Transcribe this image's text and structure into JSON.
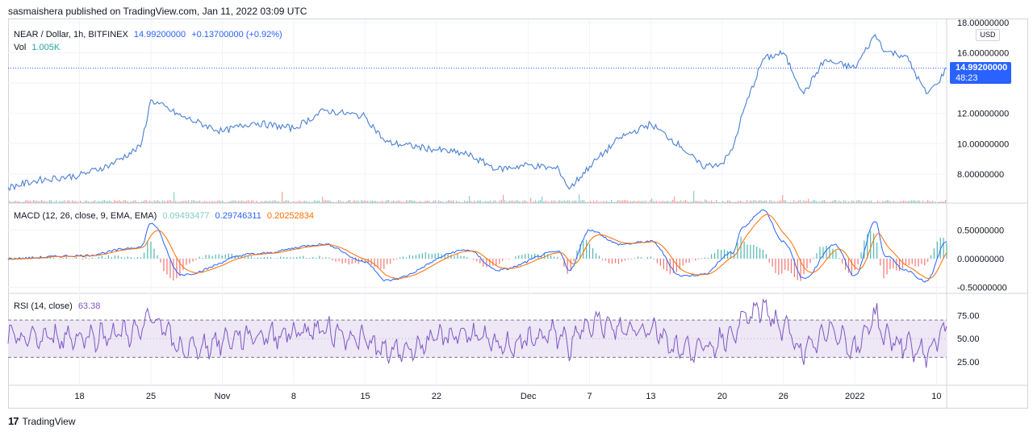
{
  "header": {
    "publisher": "sasmaishera published on TradingView.com, Jan 11, 2022 03:09 UTC"
  },
  "price_pane": {
    "symbol": "NEAR / Dollar, 1h, BITFINEX",
    "last": "14.99200000",
    "change": "+0.13700000 (+0.92%)",
    "vol_label": "Vol",
    "vol_value": "1.005K",
    "currency": "USD",
    "price_tag": "14.99200000",
    "countdown": "48:23",
    "line_color": "#4a7fd4"
  },
  "macd_pane": {
    "label": "MACD (12, 26, close, 9, EMA, EMA)",
    "hist": "0.09493477",
    "macd": "0.29746311",
    "signal": "0.20252834",
    "macd_color": "#2962ff",
    "signal_color": "#ff6d00",
    "hist_pos_color": "#26a69a",
    "hist_neg_color": "#ef5350"
  },
  "rsi_pane": {
    "label": "RSI (14, close)",
    "value": "63.38",
    "line_color": "#7e57c2",
    "band_color": "#ede7f6"
  },
  "footer": {
    "brand": "TradingView",
    "logo": "17"
  },
  "chart_data": [
    {
      "type": "line",
      "name": "NEAR / Dollar",
      "x": [
        "Oct 11",
        "Oct 14",
        "Oct 18",
        "Oct 21",
        "Oct 24",
        "Oct 25",
        "Oct 28",
        "Nov 1",
        "Nov 4",
        "Nov 8",
        "Nov 11",
        "Nov 15",
        "Nov 17",
        "Nov 22",
        "Nov 25",
        "Nov 28",
        "Dec 1",
        "Dec 4",
        "Dec 5",
        "Dec 7",
        "Dec 10",
        "Dec 13",
        "Dec 16",
        "Dec 18",
        "Dec 20",
        "Dec 21",
        "Dec 22",
        "Dec 24",
        "Dec 26",
        "Dec 28",
        "Dec 30",
        "Jan 2",
        "Jan 4",
        "Jan 5",
        "Jan 7",
        "Jan 9",
        "Jan 10",
        "Jan 11"
      ],
      "y": [
        7.1,
        7.6,
        7.9,
        8.6,
        9.8,
        12.9,
        11.8,
        10.8,
        11.4,
        11.0,
        12.2,
        11.8,
        10.1,
        9.6,
        9.3,
        8.3,
        8.6,
        8.3,
        7.0,
        8.5,
        10.4,
        11.3,
        9.8,
        8.5,
        8.7,
        9.6,
        12.0,
        15.6,
        16.0,
        13.3,
        15.5,
        15.0,
        17.2,
        16.1,
        15.8,
        13.3,
        13.9,
        14.99
      ],
      "ylim": [
        6.5,
        18.0
      ],
      "yticks": [
        "8.00000000",
        "10.00000000",
        "12.00000000",
        "14.00000000",
        "16.00000000",
        "18.00000000"
      ],
      "xticks": [
        "18",
        "25",
        "Nov",
        "8",
        "15",
        "22",
        "Dec",
        "7",
        "13",
        "20",
        "26",
        "2022",
        "10"
      ]
    },
    {
      "type": "line",
      "name": "MACD",
      "x": [
        "Oct 11",
        "Oct 18",
        "Oct 24",
        "Oct 25",
        "Oct 28",
        "Nov 4",
        "Nov 11",
        "Nov 15",
        "Nov 17",
        "Nov 25",
        "Nov 28",
        "Dec 4",
        "Dec 5",
        "Dec 7",
        "Dec 10",
        "Dec 13",
        "Dec 16",
        "Dec 18",
        "Dec 21",
        "Dec 22",
        "Dec 24",
        "Dec 26",
        "Dec 28",
        "Dec 31",
        "Jan 2",
        "Jan 4",
        "Jan 5",
        "Jan 7",
        "Jan 9",
        "Jan 11"
      ],
      "y": [
        0.0,
        0.05,
        0.2,
        0.62,
        -0.28,
        0.08,
        0.25,
        -0.05,
        -0.38,
        0.15,
        -0.2,
        0.12,
        -0.2,
        0.5,
        0.25,
        0.3,
        -0.3,
        -0.28,
        0.1,
        0.55,
        0.85,
        0.3,
        -0.35,
        0.25,
        -0.3,
        0.65,
        0.05,
        -0.2,
        -0.4,
        0.3
      ],
      "ylim": [
        -0.55,
        0.9
      ],
      "yticks": [
        "-0.50000000",
        "0.00000000",
        "0.50000000"
      ]
    },
    {
      "type": "line",
      "name": "RSI",
      "ylim": [
        0,
        100
      ],
      "band": [
        30,
        70
      ],
      "yticks": [
        "25.00",
        "50.00",
        "75.00"
      ]
    }
  ]
}
